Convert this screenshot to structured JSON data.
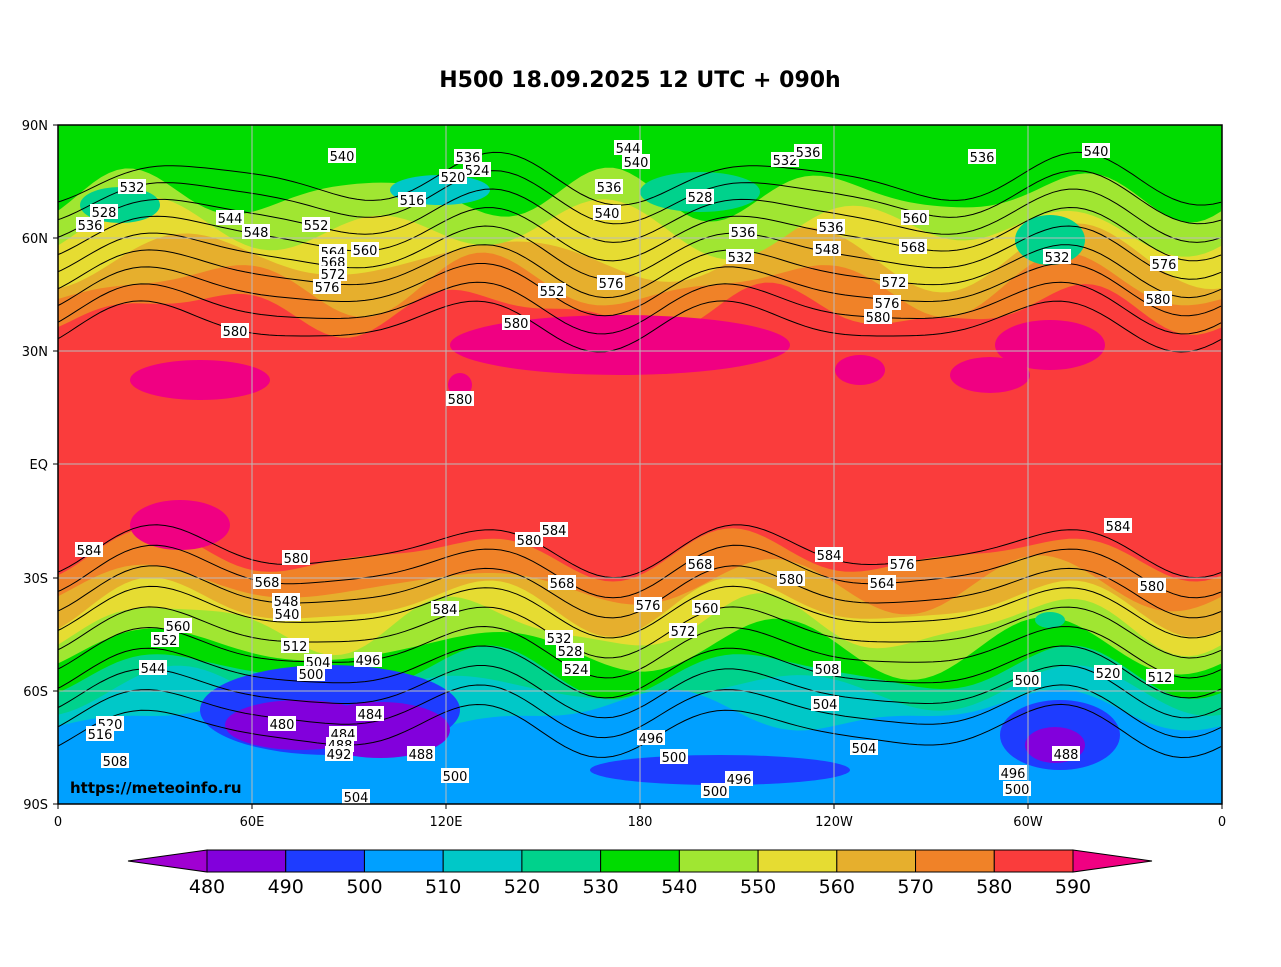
{
  "title": "H500  18.09.2025 12 UTC + 090h",
  "map": {
    "lat_ticks": [
      "90N",
      "60N",
      "30N",
      "EQ",
      "30S",
      "60S",
      "90S"
    ],
    "lon_ticks": [
      "0",
      "60E",
      "120E",
      "180",
      "120W",
      "60W",
      "0"
    ],
    "credit": "https://meteoinfo.ru",
    "contour_labels": [
      "540",
      "536",
      "524",
      "520",
      "516",
      "544",
      "540",
      "532",
      "536",
      "536",
      "540",
      "528",
      "536",
      "540",
      "532",
      "528",
      "536",
      "544",
      "548",
      "552",
      "564",
      "568",
      "572",
      "576",
      "560",
      "580",
      "580",
      "552",
      "576",
      "536",
      "532",
      "536",
      "548",
      "572",
      "576",
      "580",
      "568",
      "560",
      "532",
      "576",
      "580",
      "580",
      "584",
      "584",
      "580",
      "584",
      "580",
      "584",
      "568",
      "560",
      "572",
      "576",
      "584",
      "580",
      "568",
      "548",
      "540",
      "512",
      "504",
      "500",
      "496",
      "484",
      "560",
      "552",
      "544",
      "520",
      "516",
      "508",
      "480",
      "484",
      "488",
      "492",
      "488",
      "500",
      "504",
      "496",
      "500",
      "496",
      "500",
      "508",
      "504",
      "504",
      "500",
      "496",
      "500",
      "488",
      "520",
      "512",
      "568",
      "528",
      "524",
      "532",
      "576",
      "564",
      "580"
    ]
  },
  "colorbar": {
    "levels": [
      480,
      490,
      500,
      510,
      520,
      530,
      540,
      550,
      560,
      570,
      580,
      590
    ],
    "colors": [
      "#a000d2",
      "#8200dc",
      "#1e3cff",
      "#00a0ff",
      "#00c8c8",
      "#00d28c",
      "#00dc00",
      "#a0e632",
      "#e6dc32",
      "#e6af2d",
      "#f08228",
      "#fa3c3c",
      "#f00082"
    ]
  }
}
